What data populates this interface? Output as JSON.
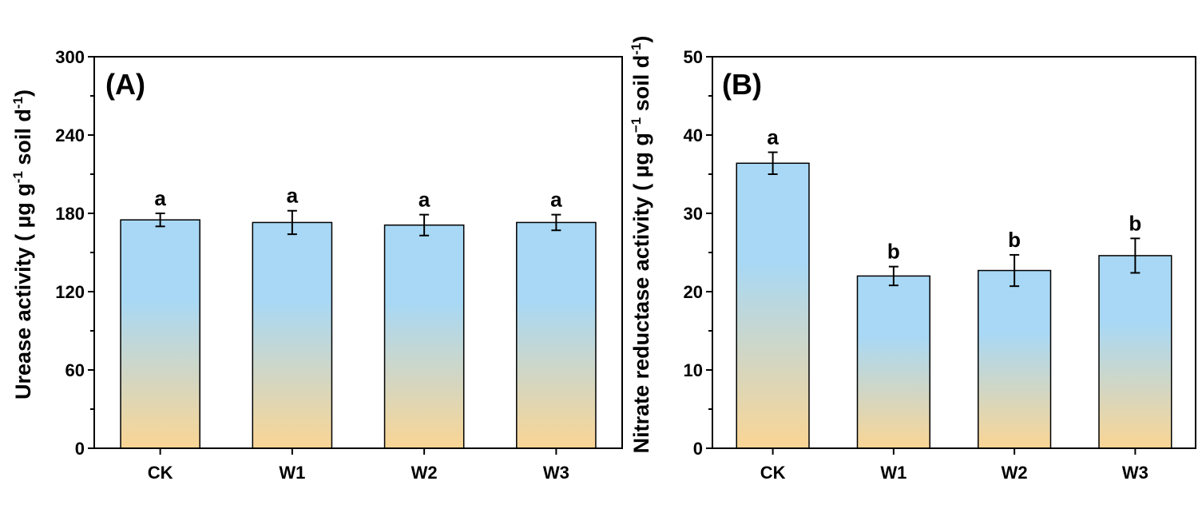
{
  "chart_data": [
    {
      "type": "bar",
      "panel_label": "(A)",
      "ylabel_main": "Urease activity ( µg g",
      "ylabel_sup1": "-1",
      "ylabel_mid": " soil d",
      "ylabel_sup2": "-1",
      "ylabel_end": ")",
      "categories": [
        "CK",
        "W1",
        "W2",
        "W3"
      ],
      "values": [
        175,
        173,
        171,
        173
      ],
      "errors": [
        5,
        9,
        8,
        6
      ],
      "significance": [
        "a",
        "a",
        "a",
        "a"
      ],
      "ylim": [
        0,
        300
      ],
      "yticks": [
        0,
        60,
        120,
        180,
        240,
        300
      ],
      "minor_ticks": true,
      "bar_gradient": {
        "top": "#a8d8f5",
        "bottom": "#fad594"
      }
    },
    {
      "type": "bar",
      "panel_label": "(B)",
      "ylabel_main": "Nitrate reductase activity ( µg g",
      "ylabel_sup1": "−1",
      "ylabel_mid": " soil d",
      "ylabel_sup2": "-1",
      "ylabel_end": ")",
      "categories": [
        "CK",
        "W1",
        "W2",
        "W3"
      ],
      "values": [
        36.4,
        22.0,
        22.7,
        24.6
      ],
      "errors": [
        1.4,
        1.2,
        2.0,
        2.2
      ],
      "significance": [
        "a",
        "b",
        "b",
        "b"
      ],
      "ylim": [
        0,
        50
      ],
      "yticks": [
        0,
        10,
        20,
        30,
        40,
        50
      ],
      "minor_ticks": true,
      "bar_gradient": {
        "top": "#a8d8f5",
        "bottom": "#fad594"
      }
    }
  ]
}
